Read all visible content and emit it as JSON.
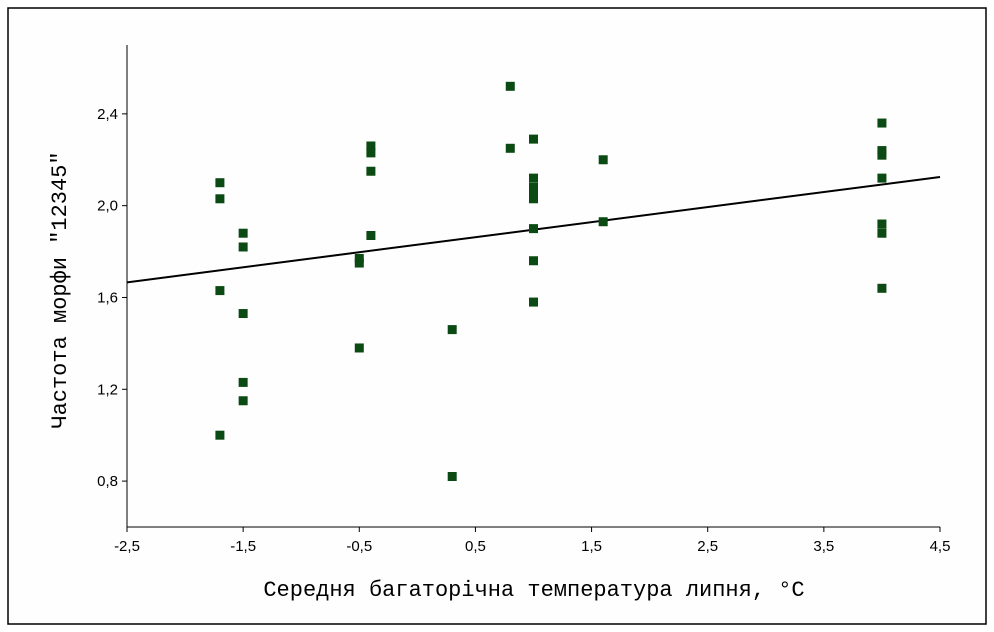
{
  "chart_data": {
    "type": "scatter",
    "x_label": "Середня багаторічна температура липня, °C",
    "y_label": "Частота морфи \"12345\"",
    "x": [
      -1.7,
      -1.7,
      -1.7,
      -1.7,
      -1.5,
      -1.5,
      -1.5,
      -1.5,
      -1.5,
      -0.5,
      -0.5,
      -0.5,
      -0.4,
      -0.4,
      -0.4,
      -0.4,
      0.3,
      0.3,
      0.8,
      0.8,
      1.0,
      1.0,
      1.0,
      1.0,
      1.0,
      1.0,
      1.0,
      1.0,
      1.6,
      1.6,
      4.0,
      4.0,
      4.0,
      4.0,
      4.0,
      4.0,
      4.0
    ],
    "values": [
      2.1,
      2.03,
      1.63,
      1.0,
      1.88,
      1.82,
      1.53,
      1.23,
      1.15,
      1.77,
      1.75,
      1.38,
      2.26,
      2.23,
      2.15,
      1.87,
      1.46,
      0.82,
      2.52,
      2.25,
      2.29,
      2.12,
      2.08,
      2.05,
      2.03,
      1.9,
      1.76,
      1.58,
      2.2,
      1.93,
      2.36,
      2.24,
      2.22,
      2.12,
      1.92,
      1.88,
      1.64
    ],
    "color": "#0b4a12",
    "fit": {
      "x": [
        -2.5,
        4.5
      ],
      "values": [
        1.666,
        2.125
      ],
      "color": "#000000"
    },
    "xlim": [
      -2.5,
      4.5
    ],
    "ylim": [
      0.6,
      2.7
    ],
    "xticks": [
      {
        "value": -2.5,
        "label": "-2,5"
      },
      {
        "value": -1.5,
        "label": "-1,5"
      },
      {
        "value": -0.5,
        "label": "-0,5"
      },
      {
        "value": 0.5,
        "label": "0,5"
      },
      {
        "value": 1.5,
        "label": "1,5"
      },
      {
        "value": 2.5,
        "label": "2,5"
      },
      {
        "value": 3.5,
        "label": "3,5"
      },
      {
        "value": 4.5,
        "label": "4,5"
      }
    ],
    "yticks": [
      {
        "value": 0.8,
        "label": "0,8"
      },
      {
        "value": 1.2,
        "label": "1,2"
      },
      {
        "value": 1.6,
        "label": "1,6"
      },
      {
        "value": 2.0,
        "label": "2,0"
      },
      {
        "value": 2.4,
        "label": "2,4"
      }
    ]
  }
}
